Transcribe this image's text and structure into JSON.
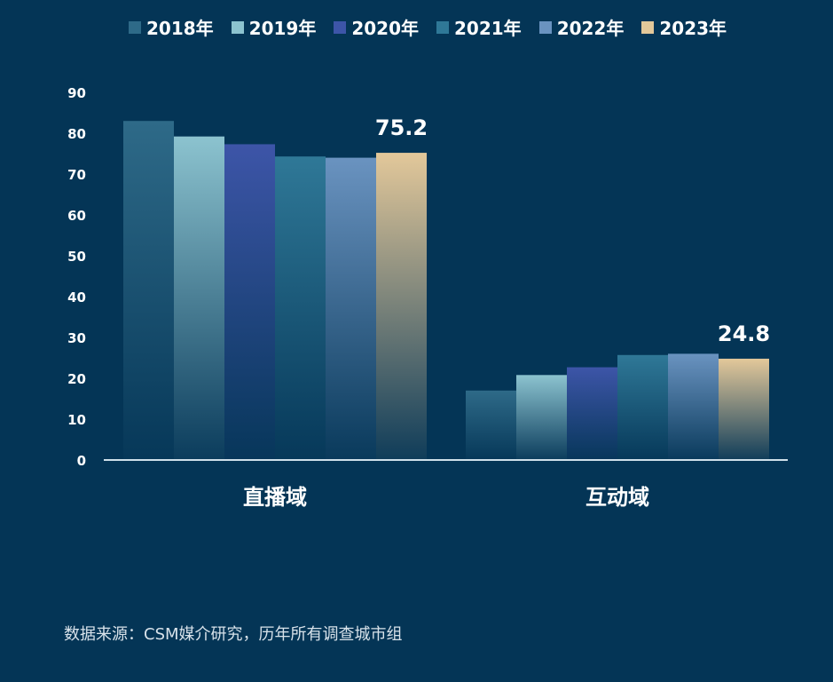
{
  "chart_data": {
    "type": "bar",
    "categories": [
      "直播域",
      "互动域"
    ],
    "series": [
      {
        "name": "2018年",
        "values": [
          83.0,
          17.0
        ],
        "color": "#2e6a88"
      },
      {
        "name": "2019年",
        "values": [
          79.2,
          20.8
        ],
        "color": "#8cc3cf"
      },
      {
        "name": "2020年",
        "values": [
          77.3,
          22.7
        ],
        "color": "#3d55a8"
      },
      {
        "name": "2021年",
        "values": [
          74.3,
          25.7
        ],
        "color": "#2f7897"
      },
      {
        "name": "2022年",
        "values": [
          74.0,
          26.0
        ],
        "color": "#6a93c0"
      },
      {
        "name": "2023年",
        "values": [
          75.2,
          24.8
        ],
        "color": "#e3c89a"
      }
    ],
    "data_labels": [
      {
        "series": 5,
        "category": 0,
        "text": "75.2"
      },
      {
        "series": 5,
        "category": 1,
        "text": "24.8"
      }
    ],
    "ylim": [
      0,
      90
    ],
    "yticks": [
      "0",
      "10",
      "20",
      "30",
      "40",
      "50",
      "60",
      "70",
      "80",
      "90"
    ],
    "legend_position": "top",
    "grid": false
  },
  "source_text": "数据来源：CSM媒介研究，历年所有调查城市组"
}
